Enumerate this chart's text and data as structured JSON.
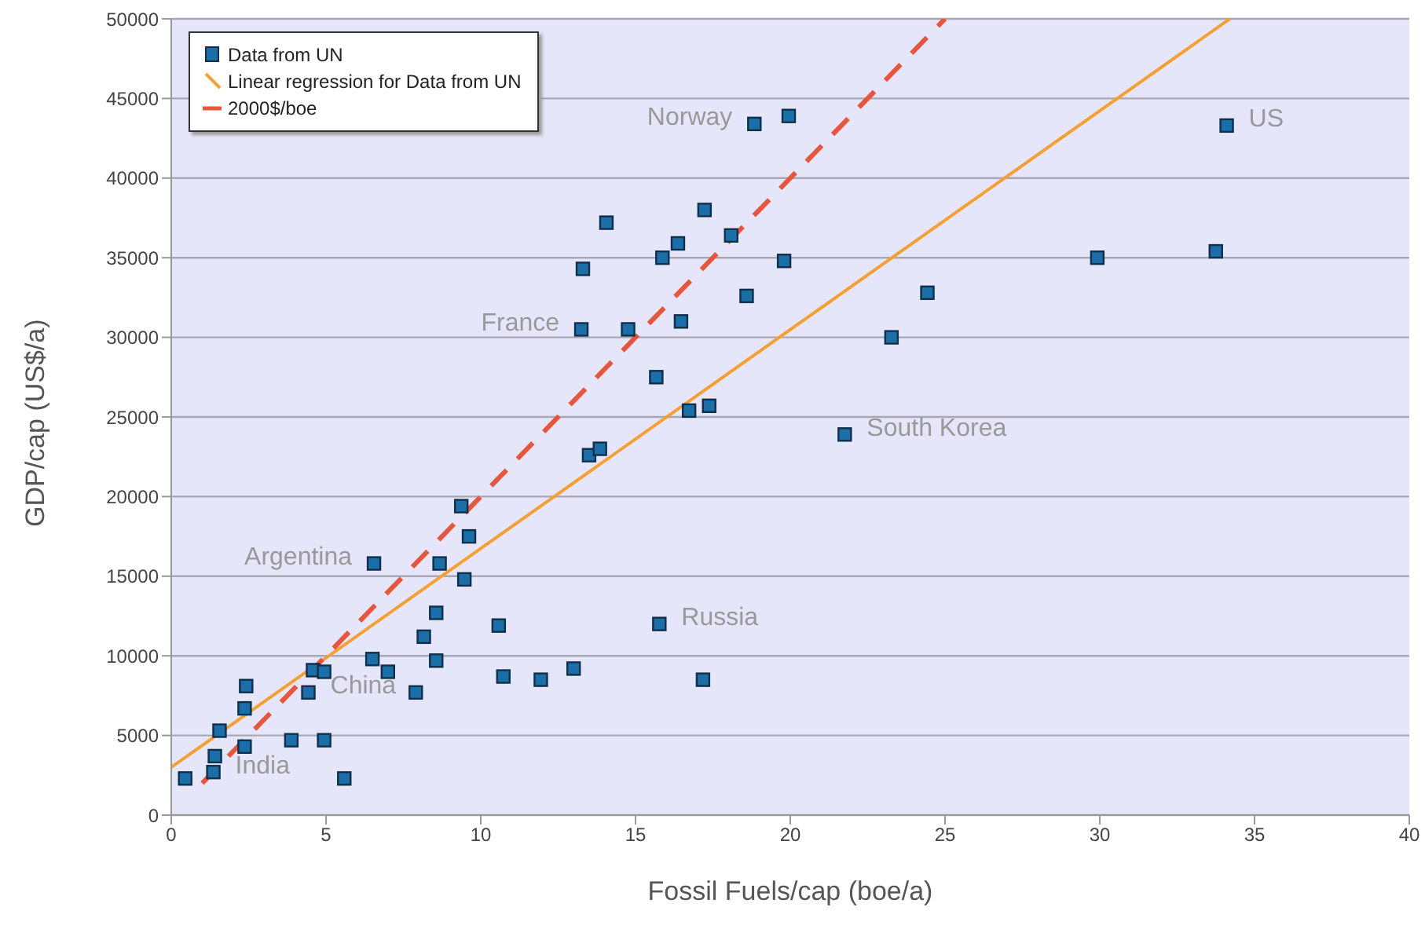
{
  "chart_data": {
    "type": "scatter",
    "xlabel": "Fossil Fuels/cap (boe/a)",
    "ylabel": "GDP/cap (US$/a)",
    "xlim": [
      0,
      40
    ],
    "xticks": [
      0,
      5,
      10,
      15,
      20,
      25,
      30,
      35,
      40
    ],
    "ylim": [
      0,
      50000
    ],
    "yticks": [
      0,
      5000,
      10000,
      15000,
      20000,
      25000,
      30000,
      35000,
      40000,
      45000,
      50000
    ],
    "grid": "y",
    "legend": "top left",
    "series": [
      {
        "name": "Data from UN",
        "marker": "square",
        "color": "#1a6fa8",
        "x": [
          0.45,
          1.36,
          1.41,
          1.56,
          2.37,
          2.37,
          2.42,
          3.88,
          4.94,
          5.59,
          4.43,
          4.58,
          4.94,
          6.5,
          7.0,
          7.9,
          8.56,
          8.16,
          8.56,
          10.58,
          10.73,
          11.94,
          13.0,
          9.47,
          8.67,
          6.55,
          9.62,
          9.37,
          13.5,
          13.85,
          15.77,
          17.18,
          16.73,
          17.38,
          21.76,
          15.67,
          23.27,
          13.25,
          14.76,
          16.47,
          18.59,
          24.43,
          13.3,
          15.87,
          19.8,
          29.92,
          33.75,
          16.37,
          18.09,
          14.06,
          17.23,
          18.84,
          19.95,
          34.1
        ],
        "values": [
          2300,
          2700,
          3700,
          5300,
          4300,
          6700,
          8100,
          4700,
          4700,
          2300,
          7700,
          9100,
          9000,
          9800,
          9000,
          7700,
          9700,
          11200,
          12700,
          11900,
          8700,
          8500,
          9200,
          14800,
          15800,
          15800,
          17500,
          19400,
          22600,
          23000,
          12000,
          8500,
          25400,
          25700,
          23900,
          27500,
          30000,
          30500,
          30500,
          31000,
          32600,
          32800,
          34300,
          35000,
          34800,
          35000,
          35400,
          35900,
          36400,
          37200,
          38000,
          43400,
          43900,
          43300
        ]
      },
      {
        "name": "Linear regression for Data from UN",
        "type": "line",
        "color": "#f5a030",
        "line_style": "solid",
        "marker": "none",
        "x": [
          0,
          34.2
        ],
        "values": [
          3000,
          50000
        ]
      },
      {
        "name": "2000$/boe",
        "type": "line",
        "color": "#e8553a",
        "line_style": "dashed",
        "marker": "none",
        "x": [
          1,
          25
        ],
        "values": [
          2000,
          50000
        ]
      }
    ],
    "annotations": [
      {
        "text": "Norway",
        "x": 18.84,
        "y": 43400
      },
      {
        "text": "US",
        "x": 34.1,
        "y": 43300
      },
      {
        "text": "France",
        "x": 13.25,
        "y": 30500
      },
      {
        "text": "South Korea",
        "x": 21.76,
        "y": 23900
      },
      {
        "text": "Argentina",
        "x": 6.55,
        "y": 15800
      },
      {
        "text": "Russia",
        "x": 15.77,
        "y": 12000
      },
      {
        "text": "China",
        "x": 4.43,
        "y": 7700
      },
      {
        "text": "India",
        "x": 1.36,
        "y": 2700
      }
    ]
  }
}
